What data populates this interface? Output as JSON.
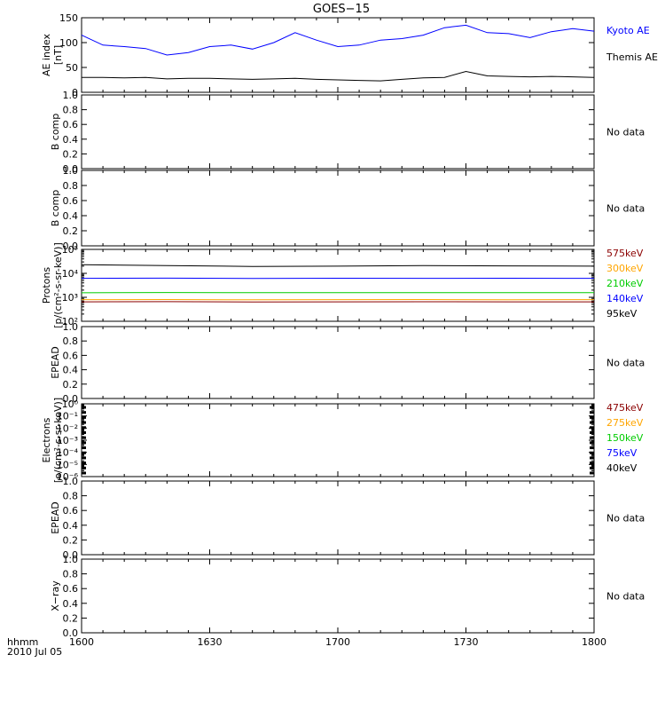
{
  "title": "GOES−15",
  "x_axis": {
    "ticks": [
      "1600",
      "1630",
      "1700",
      "1730",
      "1800"
    ],
    "unit_label": "hhmm",
    "date_label": "2010 Jul 05"
  },
  "no_data_text": "No data",
  "chart_data": [
    {
      "type": "line",
      "panel": "ae",
      "ylabel": [
        "AE index",
        "[nT]"
      ],
      "ylim": [
        0,
        150
      ],
      "yticks": [
        "0",
        "50",
        "100",
        "150"
      ],
      "x": [
        "16:00",
        "16:05",
        "16:10",
        "16:15",
        "16:20",
        "16:25",
        "16:30",
        "16:35",
        "16:40",
        "16:45",
        "16:50",
        "16:55",
        "17:00",
        "17:05",
        "17:10",
        "17:15",
        "17:20",
        "17:25",
        "17:30",
        "17:35",
        "17:40",
        "17:45",
        "17:50",
        "17:55",
        "18:00"
      ],
      "series": [
        {
          "name": "Kyoto AE",
          "color": "#0000ff",
          "values": [
            115,
            95,
            92,
            88,
            75,
            80,
            92,
            95,
            87,
            100,
            120,
            105,
            92,
            95,
            105,
            108,
            115,
            130,
            135,
            120,
            118,
            110,
            122,
            128,
            123
          ]
        },
        {
          "name": "Themis AE",
          "color": "#000000",
          "values": [
            30,
            30,
            29,
            30,
            27,
            28,
            28,
            27,
            26,
            27,
            28,
            26,
            25,
            24,
            23,
            26,
            29,
            30,
            42,
            33,
            32,
            31,
            32,
            31,
            30
          ]
        }
      ]
    },
    {
      "type": "line",
      "panel": "b1",
      "ylabel": [
        "B comp"
      ],
      "ylim": [
        0,
        1
      ],
      "yticks": [
        "0.0",
        "0.2",
        "0.4",
        "0.6",
        "0.8",
        "1.0"
      ],
      "series": [],
      "note": "No data"
    },
    {
      "type": "line",
      "panel": "b2",
      "ylabel": [
        "B comp"
      ],
      "ylim": [
        0,
        1
      ],
      "yticks": [
        "0.0",
        "0.2",
        "0.4",
        "0.6",
        "0.8",
        "1.0"
      ],
      "series": [],
      "note": "No data"
    },
    {
      "type": "line",
      "panel": "protons",
      "ylabel": [
        "Protons",
        "[p/(cm²-s-sr-keV)]"
      ],
      "yscale": "log",
      "ylim": [
        100,
        100000
      ],
      "yticks": [
        "10²",
        "10³",
        "10⁴",
        "10⁵"
      ],
      "x": [
        "16:00",
        "16:20",
        "16:40",
        "17:00",
        "17:20",
        "17:40",
        "18:00"
      ],
      "series": [
        {
          "name": "575keV",
          "color": "#8b0000",
          "values": [
            650,
            660,
            640,
            650,
            655,
            645,
            650
          ]
        },
        {
          "name": "300keV",
          "color": "#ffa500",
          "values": [
            800,
            810,
            790,
            800,
            805,
            795,
            800
          ]
        },
        {
          "name": "210keV",
          "color": "#00cc00",
          "values": [
            1550,
            1580,
            1560,
            1570,
            1575,
            1565,
            1560
          ]
        },
        {
          "name": "140keV",
          "color": "#0000ff",
          "values": [
            6200,
            6300,
            6150,
            6250,
            6200,
            6250,
            6200
          ]
        },
        {
          "name": "95keV",
          "color": "#000000",
          "values": [
            23000,
            21000,
            19500,
            20000,
            21000,
            20500,
            20000
          ]
        }
      ]
    },
    {
      "type": "line",
      "panel": "epead1",
      "ylabel": [
        "EPEAD"
      ],
      "ylim": [
        0,
        1
      ],
      "yticks": [
        "0.0",
        "0.2",
        "0.4",
        "0.6",
        "0.8",
        "1.0"
      ],
      "series": [],
      "note": "No data"
    },
    {
      "type": "line",
      "panel": "electrons",
      "ylabel": [
        "Electrons",
        "[e/(cm²-s-sr-keV)]"
      ],
      "yscale": "log",
      "ylim": [
        1e-06,
        1
      ],
      "yticks": [
        "10⁻⁶",
        "10⁻⁵",
        "10⁻⁴",
        "10⁻³",
        "10⁻²",
        "10⁻¹",
        "10⁰"
      ],
      "series": [
        {
          "name": "475keV",
          "color": "#8b0000",
          "values": []
        },
        {
          "name": "275keV",
          "color": "#ffa500",
          "values": []
        },
        {
          "name": "150keV",
          "color": "#00cc00",
          "values": []
        },
        {
          "name": "75keV",
          "color": "#0000ff",
          "values": []
        },
        {
          "name": "40keV",
          "color": "#000000",
          "values": []
        }
      ]
    },
    {
      "type": "line",
      "panel": "epead2",
      "ylabel": [
        "EPEAD"
      ],
      "ylim": [
        0,
        1
      ],
      "yticks": [
        "0.0",
        "0.2",
        "0.4",
        "0.6",
        "0.8",
        "1.0"
      ],
      "series": [],
      "note": "No data"
    },
    {
      "type": "line",
      "panel": "xray",
      "ylabel": [
        "X−ray"
      ],
      "ylim": [
        0,
        1
      ],
      "yticks": [
        "0.0",
        "0.2",
        "0.4",
        "0.6",
        "0.8",
        "1.0"
      ],
      "series": [],
      "note": "No data"
    }
  ]
}
